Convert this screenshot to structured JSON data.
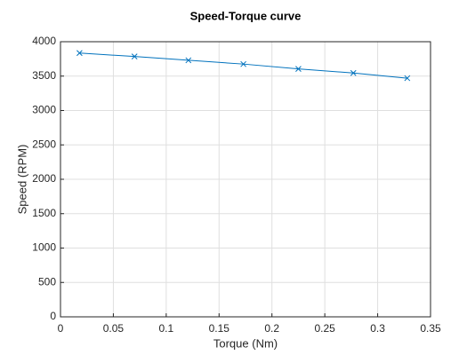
{
  "chart_data": {
    "type": "line",
    "title": "Speed-Torque curve",
    "x_label": "Torque (Nm)",
    "y_label": "Speed (RPM)",
    "x": [
      0.018,
      0.07,
      0.121,
      0.173,
      0.225,
      0.277,
      0.328
    ],
    "series": [
      {
        "color": "#0072bd",
        "marker": "x",
        "values": [
          3835,
          3785,
          3730,
          3675,
          3605,
          3545,
          3470
        ]
      }
    ],
    "xlim": [
      0,
      0.35
    ],
    "xticks": [
      0,
      0.05,
      0.1,
      0.15,
      0.2,
      0.25,
      0.3,
      0.35
    ],
    "ylim": [
      0,
      4000
    ],
    "yticks": [
      0,
      500,
      1000,
      1500,
      2000,
      2500,
      3000,
      3500,
      4000
    ],
    "grid": true
  }
}
